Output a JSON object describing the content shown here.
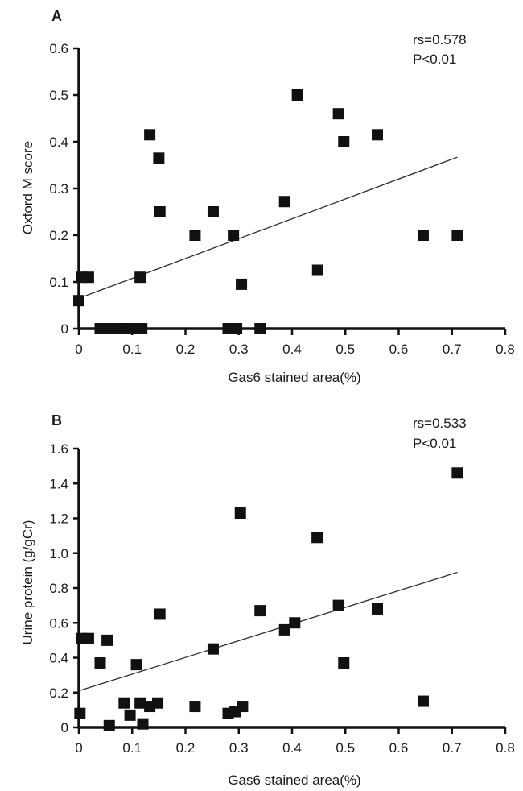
{
  "chart_data": [
    {
      "type": "scatter",
      "panel_label": "A",
      "xlabel": "Gas6 stained area(%)",
      "ylabel": "Oxford M score",
      "xlim": [
        0,
        0.8
      ],
      "ylim": [
        0,
        0.6
      ],
      "x_ticks": [
        0,
        0.1,
        0.2,
        0.3,
        0.4,
        0.5,
        0.6,
        0.7,
        0.8
      ],
      "x_tick_labels": [
        "0",
        "0.1",
        "0.2",
        "0.3",
        "0.4",
        "0.5",
        "0.6",
        "0.7",
        "0.8"
      ],
      "y_ticks": [
        0,
        0.1,
        0.2,
        0.3,
        0.4,
        0.5,
        0.6
      ],
      "y_tick_labels": [
        "0",
        "0.1",
        "0.2",
        "0.3",
        "0.4",
        "0.5",
        "0.6"
      ],
      "annotations": [
        "rs=0.578",
        "P<0.01"
      ],
      "grid": false,
      "points": [
        {
          "x": 0.0,
          "y": 0.06
        },
        {
          "x": 0.005,
          "y": 0.11
        },
        {
          "x": 0.018,
          "y": 0.11
        },
        {
          "x": 0.04,
          "y": 0.0
        },
        {
          "x": 0.052,
          "y": 0.0
        },
        {
          "x": 0.064,
          "y": 0.0
        },
        {
          "x": 0.076,
          "y": 0.0
        },
        {
          "x": 0.088,
          "y": 0.0
        },
        {
          "x": 0.1,
          "y": 0.0
        },
        {
          "x": 0.112,
          "y": 0.0
        },
        {
          "x": 0.118,
          "y": 0.0
        },
        {
          "x": 0.115,
          "y": 0.11
        },
        {
          "x": 0.133,
          "y": 0.415
        },
        {
          "x": 0.15,
          "y": 0.365
        },
        {
          "x": 0.152,
          "y": 0.25
        },
        {
          "x": 0.218,
          "y": 0.2
        },
        {
          "x": 0.252,
          "y": 0.25
        },
        {
          "x": 0.28,
          "y": 0.0
        },
        {
          "x": 0.29,
          "y": 0.2
        },
        {
          "x": 0.296,
          "y": 0.0
        },
        {
          "x": 0.305,
          "y": 0.095
        },
        {
          "x": 0.34,
          "y": 0.0
        },
        {
          "x": 0.386,
          "y": 0.272
        },
        {
          "x": 0.41,
          "y": 0.5
        },
        {
          "x": 0.448,
          "y": 0.125
        },
        {
          "x": 0.487,
          "y": 0.46
        },
        {
          "x": 0.497,
          "y": 0.4
        },
        {
          "x": 0.56,
          "y": 0.415
        },
        {
          "x": 0.646,
          "y": 0.2
        },
        {
          "x": 0.71,
          "y": 0.2
        }
      ],
      "trendline": {
        "x": [
          0.0,
          0.71
        ],
        "y": [
          0.065,
          0.367
        ]
      }
    },
    {
      "type": "scatter",
      "panel_label": "B",
      "xlabel": "Gas6 stained area(%)",
      "ylabel": "Urine protein (g/gCr)",
      "xlim": [
        0,
        0.8
      ],
      "ylim": [
        0,
        1.6
      ],
      "x_ticks": [
        0,
        0.1,
        0.2,
        0.3,
        0.4,
        0.5,
        0.6,
        0.7,
        0.8
      ],
      "x_tick_labels": [
        "0",
        "0.1",
        "0.2",
        "0.3",
        "0.4",
        "0.5",
        "0.6",
        "0.7",
        "0.8"
      ],
      "y_ticks": [
        0,
        0.2,
        0.4,
        0.6,
        0.8,
        1.0,
        1.2,
        1.4,
        1.6
      ],
      "y_tick_labels": [
        "0",
        "0.2",
        "0.4",
        "0.6",
        "0.8",
        "1.0",
        "1.2",
        "1.4",
        "1.6"
      ],
      "annotations": [
        "rs=0.533",
        "P<0.01"
      ],
      "grid": false,
      "points": [
        {
          "x": 0.002,
          "y": 0.08
        },
        {
          "x": 0.005,
          "y": 0.51
        },
        {
          "x": 0.018,
          "y": 0.51
        },
        {
          "x": 0.04,
          "y": 0.37
        },
        {
          "x": 0.053,
          "y": 0.5
        },
        {
          "x": 0.057,
          "y": 0.01
        },
        {
          "x": 0.085,
          "y": 0.14
        },
        {
          "x": 0.096,
          "y": 0.07
        },
        {
          "x": 0.108,
          "y": 0.36
        },
        {
          "x": 0.115,
          "y": 0.14
        },
        {
          "x": 0.12,
          "y": 0.02
        },
        {
          "x": 0.133,
          "y": 0.12
        },
        {
          "x": 0.148,
          "y": 0.14
        },
        {
          "x": 0.152,
          "y": 0.65
        },
        {
          "x": 0.218,
          "y": 0.12
        },
        {
          "x": 0.252,
          "y": 0.45
        },
        {
          "x": 0.28,
          "y": 0.08
        },
        {
          "x": 0.293,
          "y": 0.09
        },
        {
          "x": 0.303,
          "y": 1.23
        },
        {
          "x": 0.307,
          "y": 0.12
        },
        {
          "x": 0.34,
          "y": 0.67
        },
        {
          "x": 0.386,
          "y": 0.56
        },
        {
          "x": 0.405,
          "y": 0.6
        },
        {
          "x": 0.447,
          "y": 1.09
        },
        {
          "x": 0.487,
          "y": 0.7
        },
        {
          "x": 0.497,
          "y": 0.37
        },
        {
          "x": 0.56,
          "y": 0.68
        },
        {
          "x": 0.646,
          "y": 0.15
        },
        {
          "x": 0.71,
          "y": 1.46
        }
      ],
      "trendline": {
        "x": [
          0.0,
          0.71
        ],
        "y": [
          0.21,
          0.89
        ]
      }
    }
  ]
}
